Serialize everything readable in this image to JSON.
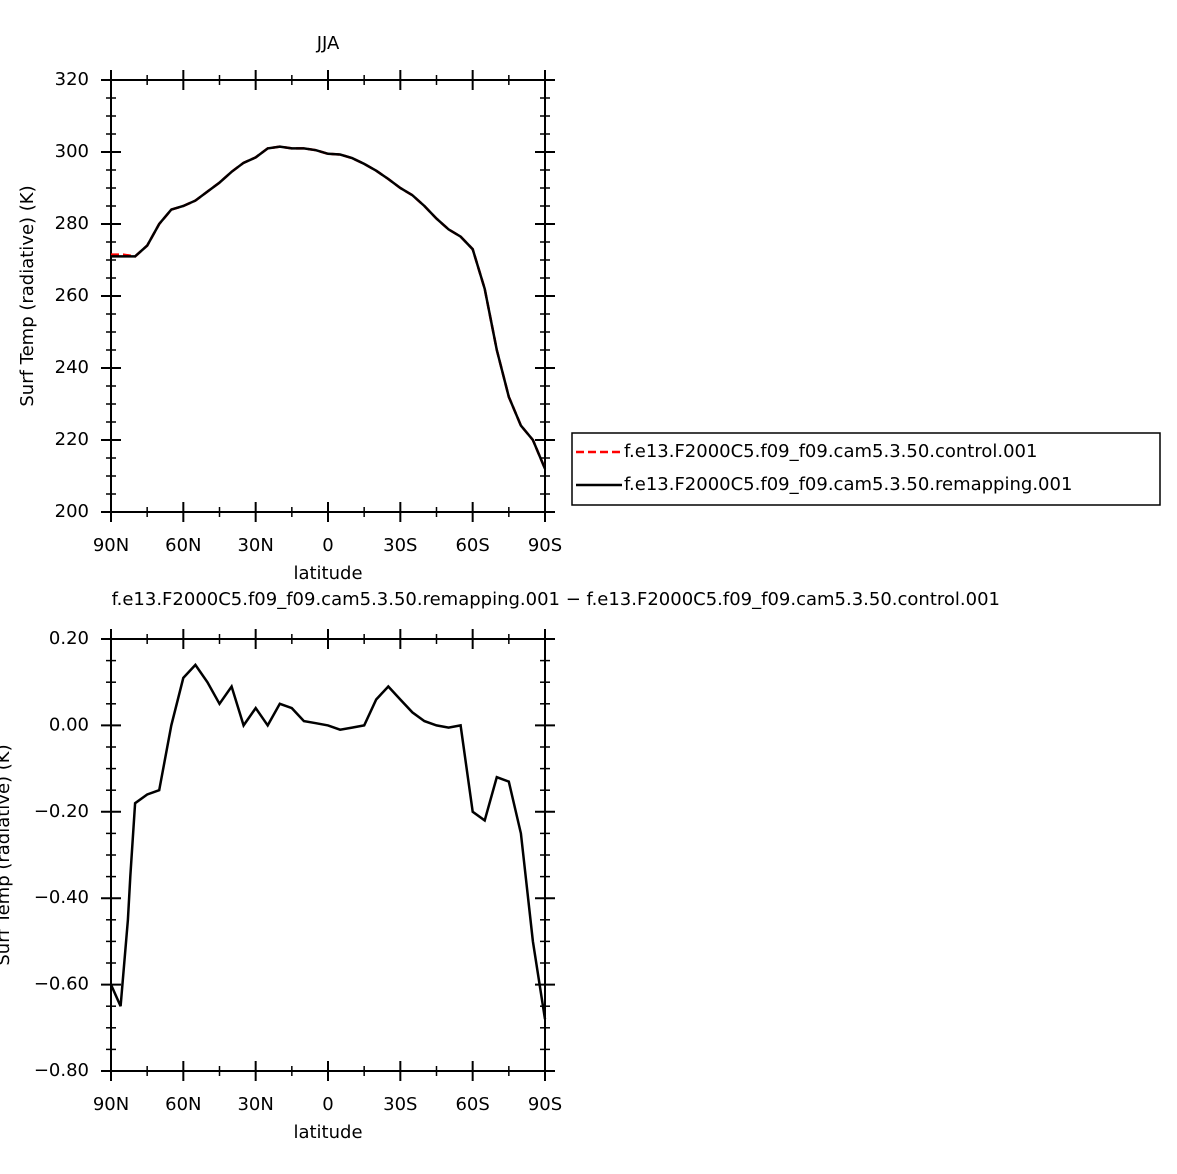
{
  "chart_data": [
    {
      "type": "line",
      "title": "JJA",
      "xlabel": "latitude",
      "ylabel": "Surf Temp (radiative) (K)",
      "x": [
        90,
        85,
        80,
        75,
        70,
        65,
        60,
        55,
        50,
        45,
        40,
        35,
        30,
        25,
        20,
        15,
        10,
        5,
        0,
        -5,
        -10,
        -15,
        -20,
        -25,
        -30,
        -35,
        -40,
        -45,
        -50,
        -55,
        -60,
        -65,
        -70,
        -75,
        -80,
        -85,
        -90
      ],
      "series": [
        {
          "name": "f.e13.F2000C5.f09_f09.cam5.3.50.control.001",
          "color": "#ff0000",
          "linestyle": "dashed",
          "values": [
            271.5,
            271.5,
            271,
            274,
            280,
            284,
            285,
            286.5,
            289,
            291.5,
            294.5,
            297,
            298.5,
            301,
            301.5,
            301,
            301,
            300.5,
            299.5,
            299.3,
            298.3,
            296.7,
            294.8,
            292.5,
            290,
            288,
            285,
            281.5,
            278.5,
            276.5,
            273,
            262,
            245,
            232,
            224,
            220,
            212
          ]
        },
        {
          "name": "f.e13.F2000C5.f09_f09.cam5.3.50.remapping.001",
          "color": "#000000",
          "linestyle": "solid",
          "values": [
            271,
            271,
            271,
            274,
            280,
            284,
            285,
            286.5,
            289,
            291.5,
            294.5,
            297,
            298.5,
            301,
            301.5,
            301,
            301,
            300.5,
            299.5,
            299.3,
            298.3,
            296.7,
            294.8,
            292.5,
            290,
            288,
            285,
            281.5,
            278.5,
            276.5,
            273,
            262,
            245,
            232,
            224,
            220,
            212
          ]
        }
      ],
      "xlim": [
        90,
        -90
      ],
      "xticks": [
        {
          "value": 90,
          "label": "90N"
        },
        {
          "value": 60,
          "label": "60N"
        },
        {
          "value": 30,
          "label": "30N"
        },
        0,
        {
          "value": -30,
          "label": "30S"
        },
        {
          "value": -60,
          "label": "60S"
        },
        {
          "value": -90,
          "label": "90S"
        }
      ],
      "ylim": [
        200,
        320
      ],
      "yticks": [
        200,
        220,
        240,
        260,
        280,
        300,
        320
      ]
    },
    {
      "type": "line",
      "title": "f.e13.F2000C5.f09_f09.cam5.3.50.remapping.001 − f.e13.F2000C5.f09_f09.cam5.3.50.control.001",
      "xlabel": "latitude",
      "ylabel": "Surf Temp (radiative) (K)",
      "x": [
        90,
        86,
        83,
        82,
        80,
        75,
        70,
        65,
        60,
        55,
        50,
        45,
        40,
        35,
        30,
        25,
        20,
        15,
        10,
        5,
        0,
        -5,
        -10,
        -15,
        -20,
        -25,
        -30,
        -35,
        -40,
        -45,
        -50,
        -55,
        -60,
        -65,
        -70,
        -75,
        -80,
        -85,
        -90
      ],
      "series": [
        {
          "name": null,
          "color": "#000000",
          "linestyle": "solid",
          "values": [
            -0.6,
            -0.65,
            -0.45,
            -0.35,
            -0.18,
            -0.16,
            -0.15,
            0.0,
            0.11,
            0.14,
            0.1,
            0.05,
            0.09,
            0.0,
            0.04,
            0.0,
            0.05,
            0.04,
            0.01,
            0.005,
            0.0,
            -0.01,
            -0.005,
            0.0,
            0.06,
            0.09,
            0.06,
            0.03,
            0.01,
            0.0,
            -0.005,
            0.0,
            -0.2,
            -0.22,
            -0.12,
            -0.13,
            -0.25,
            -0.5,
            -0.68
          ]
        }
      ],
      "xlim": [
        90,
        -90
      ],
      "xticks": [
        {
          "value": 90,
          "label": "90N"
        },
        {
          "value": 60,
          "label": "60N"
        },
        {
          "value": 30,
          "label": "30N"
        },
        0,
        {
          "value": -30,
          "label": "30S"
        },
        {
          "value": -60,
          "label": "60S"
        },
        {
          "value": -90,
          "label": "90S"
        }
      ],
      "ylim": [
        -0.8,
        0.2
      ],
      "yticks": [
        {
          "value": -0.8,
          "label": "−0.80"
        },
        {
          "value": -0.6,
          "label": "−0.60"
        },
        {
          "value": -0.4,
          "label": "−0.40"
        },
        {
          "value": -0.2,
          "label": "−0.20"
        },
        {
          "value": 0,
          "label": "0.00"
        },
        {
          "value": 0.2,
          "label": "0.20"
        }
      ]
    }
  ]
}
